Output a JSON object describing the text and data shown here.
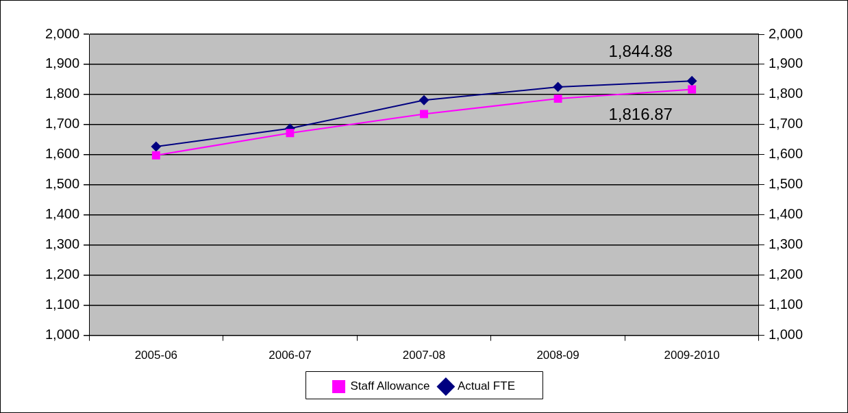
{
  "chart_data": {
    "type": "line",
    "categories": [
      "2005-06",
      "2006-07",
      "2007-08",
      "2008-09",
      "2009-2010"
    ],
    "series": [
      {
        "name": "Staff Allowance",
        "color": "#ff00ff",
        "marker": "square",
        "values": [
          1598,
          1672,
          1735,
          1786,
          1816.87
        ],
        "value_labels": [
          null,
          null,
          null,
          null,
          "1,816.87"
        ]
      },
      {
        "name": "Actual FTE",
        "color": "#000080",
        "marker": "diamond",
        "values": [
          1627,
          1687,
          1781,
          1825,
          1844.88
        ],
        "value_labels": [
          null,
          null,
          null,
          null,
          "1,844.88"
        ]
      }
    ],
    "ylim": [
      1000,
      2000
    ],
    "yticks": [
      {
        "value": 1000,
        "label": "1,000"
      },
      {
        "value": 1100,
        "label": "1,100"
      },
      {
        "value": 1200,
        "label": "1,200"
      },
      {
        "value": 1300,
        "label": "1,300"
      },
      {
        "value": 1400,
        "label": "1,400"
      },
      {
        "value": 1500,
        "label": "1,500"
      },
      {
        "value": 1600,
        "label": "1,600"
      },
      {
        "value": 1700,
        "label": "1,700"
      },
      {
        "value": 1800,
        "label": "1,800"
      },
      {
        "value": 1900,
        "label": "1,900"
      },
      {
        "value": 2000,
        "label": "2,000"
      }
    ],
    "y2lim": [
      1000,
      2000
    ],
    "y2ticks": [
      {
        "value": 1000,
        "label": "1,000"
      },
      {
        "value": 1100,
        "label": "1,100"
      },
      {
        "value": 1200,
        "label": "1,200"
      },
      {
        "value": 1300,
        "label": "1,300"
      },
      {
        "value": 1400,
        "label": "1,400"
      },
      {
        "value": 1500,
        "label": "1,500"
      },
      {
        "value": 1600,
        "label": "1,600"
      },
      {
        "value": 1700,
        "label": "1,700"
      },
      {
        "value": 1800,
        "label": "1,800"
      },
      {
        "value": 1900,
        "label": "1,900"
      },
      {
        "value": 2000,
        "label": "2,000"
      }
    ],
    "grid": "y",
    "legend": "bottom"
  }
}
